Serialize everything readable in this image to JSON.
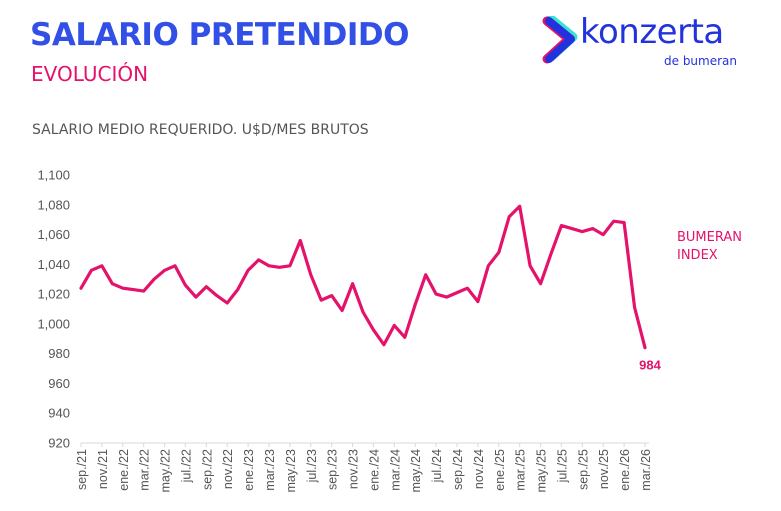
{
  "header": {
    "title": "SALARIO PRETENDIDO",
    "subtitle": "EVOLUCIÓN",
    "chart_title": "SALARIO MEDIO REQUERIDO. U$D/MES BRUTOS"
  },
  "logo": {
    "word": "konzerta",
    "sub": "de bumeran",
    "colors": {
      "blue": "#2233dd",
      "pink": "#e5126b",
      "teal": "#3ee0d0"
    }
  },
  "legend": {
    "line1": "BUMERAN",
    "line2": "INDEX"
  },
  "colors": {
    "title": "#3250e6",
    "accent": "#e5126b",
    "text": "#555555",
    "axis": "#d9d9d9"
  },
  "chart_data": {
    "type": "line",
    "title": "SALARIO MEDIO REQUERIDO. U$D/MES BRUTOS",
    "xlabel": "",
    "ylabel": "",
    "ylim": [
      920,
      1100
    ],
    "yticks": [
      920,
      940,
      960,
      980,
      1000,
      1020,
      1040,
      1060,
      1080,
      1100
    ],
    "ytick_labels": [
      "920",
      "940",
      "960",
      "980",
      "1,000",
      "1,020",
      "1,040",
      "1,060",
      "1,080",
      "1,100"
    ],
    "grid": false,
    "legend_position": "right",
    "x": [
      "sep./21",
      "oct./21",
      "nov./21",
      "dic./21",
      "ene./22",
      "feb./22",
      "mar./22",
      "abr./22",
      "may./22",
      "jun./22",
      "jul./22",
      "ago./22",
      "sep./22",
      "oct./22",
      "nov./22",
      "dic./22",
      "ene./23",
      "feb./23",
      "mar./23",
      "abr./23",
      "may./23",
      "jun./23",
      "jul./23",
      "ago./23",
      "sep./23",
      "oct./23",
      "nov./23",
      "dic./23",
      "ene./24",
      "feb./24",
      "mar./24",
      "abr./24",
      "may./24",
      "jun./24",
      "jul./24",
      "ago./24",
      "sep./24",
      "oct./24",
      "nov./24",
      "dic./24",
      "ene./25",
      "feb./25",
      "mar./25",
      "abr./25",
      "may./25",
      "jun./25",
      "jul./25",
      "ago./25",
      "sep./25",
      "oct./25",
      "nov./25",
      "dic./25",
      "ene./26",
      "feb./26",
      "mar./26"
    ],
    "xtick_labels": [
      "sep./21",
      "nov./21",
      "ene./22",
      "mar./22",
      "may./22",
      "jul./22",
      "sep./22",
      "nov./22",
      "ene./23",
      "mar./23",
      "may./23",
      "jul./23",
      "sep./23",
      "nov./23",
      "ene./24",
      "mar./24",
      "may./24",
      "jul./24",
      "sep./24",
      "nov./24",
      "ene./25",
      "mar./25",
      "may./25",
      "jul./25",
      "sep./25",
      "nov./25",
      "ene./26",
      "mar./26"
    ],
    "series": [
      {
        "name": "BUMERAN INDEX",
        "color": "#e5126b",
        "values": [
          1024,
          1036,
          1039,
          1027,
          1024,
          1023,
          1022,
          1030,
          1036,
          1039,
          1026,
          1018,
          1025,
          1019,
          1014,
          1023,
          1036,
          1043,
          1039,
          1038,
          1039,
          1056,
          1033,
          1016,
          1019,
          1009,
          1027,
          1008,
          996,
          986,
          999,
          991,
          1013,
          1033,
          1020,
          1018,
          1021,
          1024,
          1015,
          1039,
          1048,
          1072,
          1079,
          1039,
          1027,
          1047,
          1066,
          1064,
          1062,
          1064,
          1060,
          1069,
          1068,
          1011,
          984
        ]
      }
    ],
    "annotations": [
      {
        "label": "984",
        "x": "mar./26",
        "value": 984
      }
    ]
  }
}
